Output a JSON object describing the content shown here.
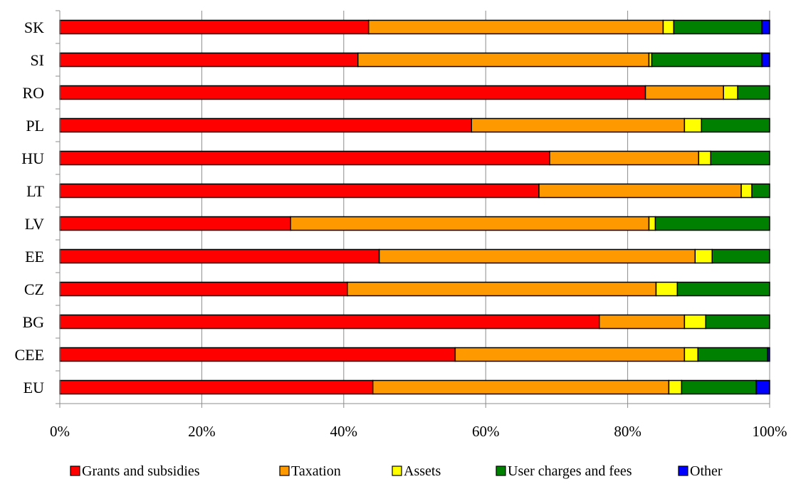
{
  "chart_data": {
    "type": "bar",
    "orientation": "horizontal",
    "stacked": "percent",
    "categories": [
      "SK",
      "SI",
      "RO",
      "PL",
      "HU",
      "LT",
      "LV",
      "EE",
      "CZ",
      "BG",
      "CEE",
      "EU"
    ],
    "series": [
      {
        "name": "Grants and subsidies",
        "color": "#ff0000",
        "values": [
          43.5,
          42.0,
          82.5,
          58.0,
          69.0,
          67.5,
          32.5,
          45.0,
          40.5,
          76.0,
          55.7,
          44.1
        ]
      },
      {
        "name": "Taxation",
        "color": "#ff9900",
        "values": [
          41.5,
          41.0,
          11.0,
          30.0,
          21.0,
          28.5,
          50.5,
          44.5,
          43.5,
          12.0,
          32.3,
          41.7
        ]
      },
      {
        "name": "Assets",
        "color": "#ffff00",
        "values": [
          1.5,
          0.4,
          2.0,
          2.4,
          1.7,
          1.5,
          0.9,
          2.4,
          3.0,
          3.0,
          1.9,
          1.8
        ]
      },
      {
        "name": "User charges and fees",
        "color": "#008000",
        "values": [
          12.4,
          15.5,
          4.5,
          9.6,
          8.3,
          2.5,
          16.1,
          8.1,
          13.0,
          9.0,
          9.8,
          10.5
        ]
      },
      {
        "name": "Other",
        "color": "#0000ff",
        "values": [
          1.1,
          1.1,
          0.0,
          0.0,
          0.0,
          0.0,
          0.0,
          0.0,
          0.0,
          0.0,
          0.3,
          1.9
        ]
      }
    ],
    "x_ticks": [
      "0%",
      "20%",
      "40%",
      "60%",
      "80%",
      "100%"
    ],
    "xlim": [
      0,
      100
    ],
    "grid": true,
    "legend_position": "bottom",
    "title": "",
    "xlabel": "",
    "ylabel": ""
  }
}
